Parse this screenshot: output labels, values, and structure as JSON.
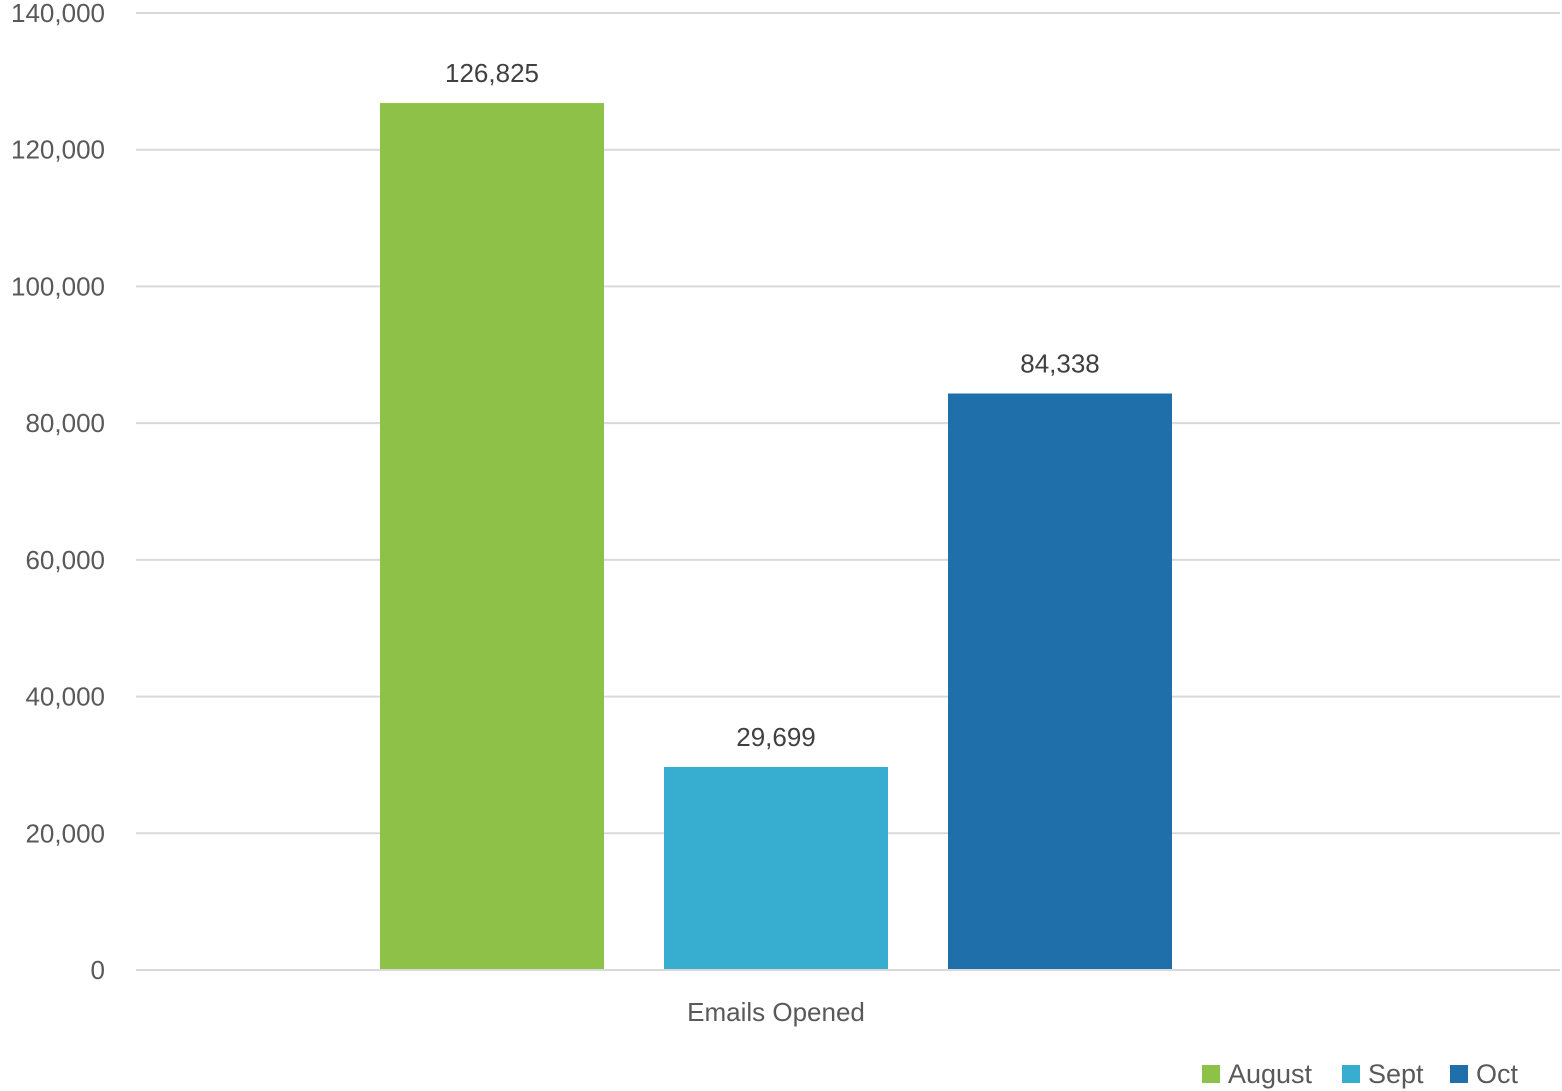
{
  "chart_data": {
    "type": "bar",
    "categories": [
      "Emails Opened"
    ],
    "series": [
      {
        "name": "August",
        "values": [
          126825
        ],
        "label": "126,825",
        "color": "#8DC147"
      },
      {
        "name": "Sept",
        "values": [
          29699
        ],
        "label": "29,699",
        "color": "#37AECF"
      },
      {
        "name": "Oct",
        "values": [
          84338
        ],
        "label": "84,338",
        "color": "#1F70AA"
      }
    ],
    "ylim": [
      0,
      140000
    ],
    "yticks": [
      0,
      20000,
      40000,
      60000,
      80000,
      100000,
      120000,
      140000
    ],
    "ytick_labels": [
      "0",
      "20,000",
      "40,000",
      "60,000",
      "80,000",
      "100,000",
      "120,000",
      "140,000"
    ],
    "grid": true,
    "legend_position": "bottom-right"
  }
}
